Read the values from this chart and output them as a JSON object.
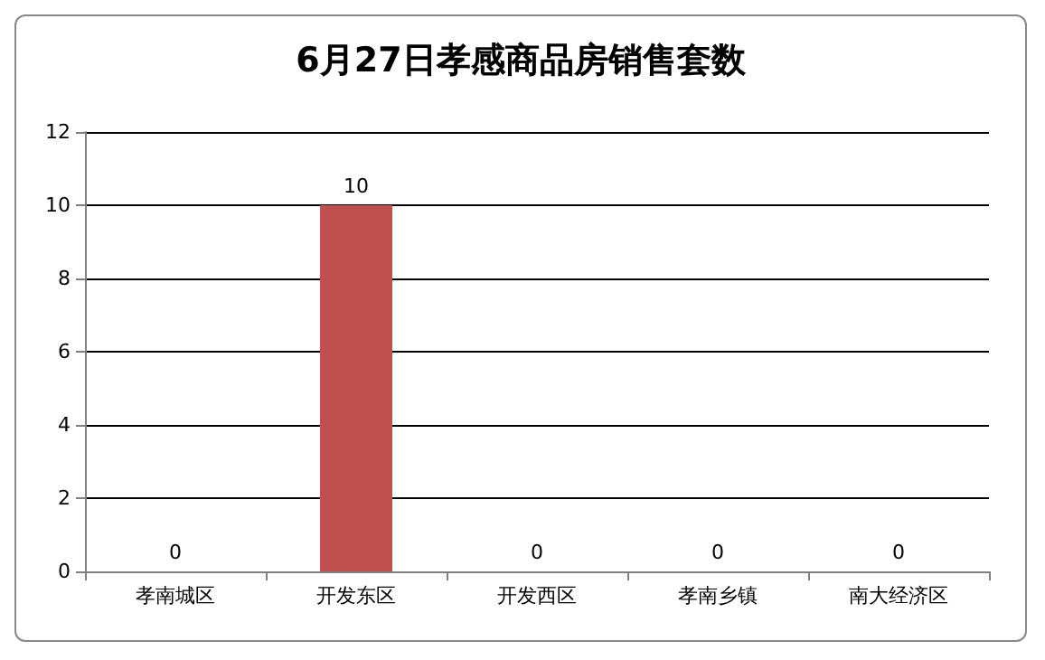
{
  "chart_data": {
    "type": "bar",
    "title": "6月27日孝感商品房销售套数",
    "categories": [
      "孝南城区",
      "开发东区",
      "开发西区",
      "孝南乡镇",
      "南大经济区"
    ],
    "values": [
      0,
      10,
      0,
      0,
      0
    ],
    "color": "#c0504d",
    "ylim": [
      0,
      12
    ],
    "yticks": [
      0,
      2,
      4,
      6,
      8,
      10,
      12
    ],
    "grid": "y",
    "data_labels": true
  }
}
